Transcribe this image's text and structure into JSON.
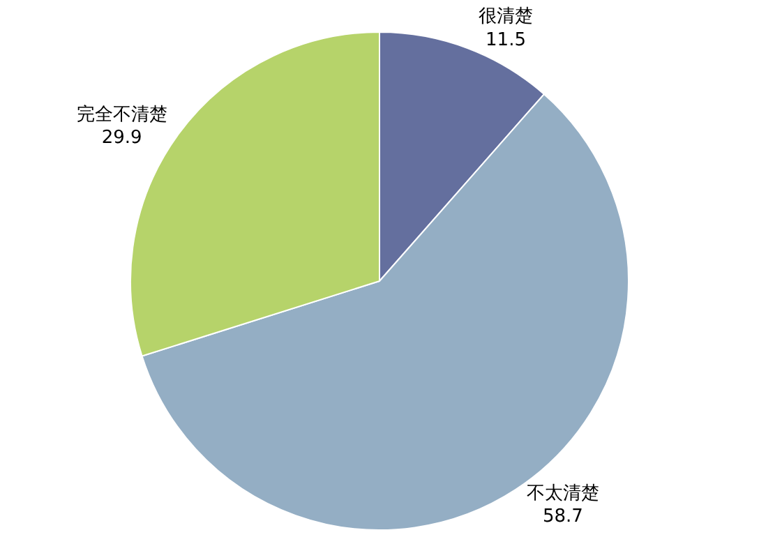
{
  "chart_data": {
    "type": "pie",
    "categories": [
      "很清楚",
      "不太清楚",
      "完全不清楚"
    ],
    "values": [
      11.5,
      58.7,
      29.9
    ],
    "colors": [
      "#646f9e",
      "#94aec4",
      "#b6d36a"
    ],
    "data_labels": true
  }
}
